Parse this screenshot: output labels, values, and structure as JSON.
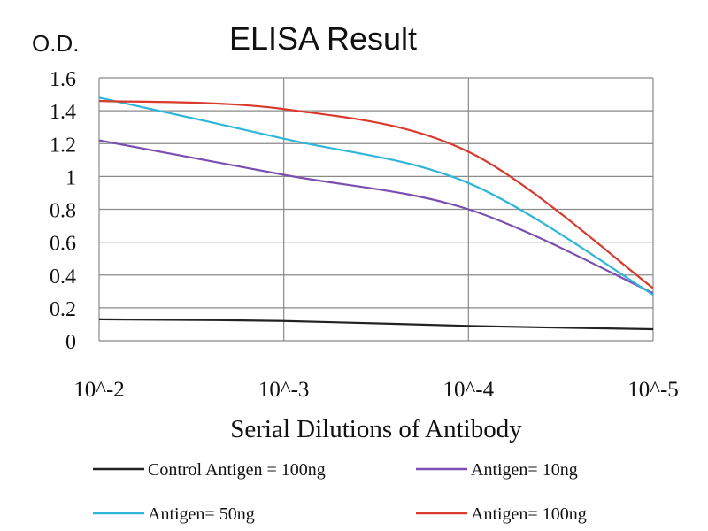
{
  "chart_data": {
    "type": "line",
    "title": "ELISA Result",
    "ylabel": "O.D.",
    "xlabel": "Serial Dilutions of Antibody",
    "categories": [
      "10^-2",
      "10^-3",
      "10^-4",
      "10^-5"
    ],
    "ylim": [
      0,
      1.6
    ],
    "yticks": [
      "0",
      "0.2",
      "0.4",
      "0.6",
      "0.8",
      "1",
      "1.2",
      "1.4",
      "1.6"
    ],
    "grid": true,
    "legend_position": "bottom",
    "series": [
      {
        "name": "Control Antigen = 100ng",
        "color": "#222222",
        "values": [
          0.13,
          0.12,
          0.09,
          0.07
        ]
      },
      {
        "name": "Antigen= 10ng",
        "color": "#7a4fb0",
        "values": [
          1.22,
          1.01,
          0.8,
          0.29
        ]
      },
      {
        "name": "Antigen= 50ng",
        "color": "#2fb5d8",
        "values": [
          1.48,
          1.23,
          0.96,
          0.28
        ]
      },
      {
        "name": "Antigen= 100ng",
        "color": "#d83a2e",
        "values": [
          1.46,
          1.41,
          1.15,
          0.32
        ]
      }
    ]
  }
}
